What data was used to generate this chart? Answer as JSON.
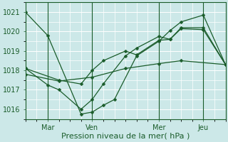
{
  "bg_color": "#cce8e8",
  "plot_bg_color": "#cce8e8",
  "grid_color": "#ffffff",
  "line_color": "#1a5c2a",
  "ylabel": "Pression niveau de la mer( hPa )",
  "ylim": [
    1015.5,
    1021.5
  ],
  "yticks": [
    1016,
    1017,
    1018,
    1019,
    1020,
    1021
  ],
  "xtick_labels": [
    "Mar",
    "Ven",
    "Mer",
    "Jeu"
  ],
  "xtick_positions": [
    12,
    36,
    72,
    96
  ],
  "xlim": [
    0,
    108
  ],
  "series1": {
    "x": [
      0,
      12,
      30,
      36,
      42,
      48,
      60,
      72,
      78,
      84,
      96,
      108
    ],
    "y": [
      1021.0,
      1019.8,
      1015.75,
      1015.85,
      1016.2,
      1016.5,
      1018.75,
      1019.5,
      1020.05,
      1020.5,
      1020.85,
      1018.3
    ]
  },
  "series2": {
    "x": [
      0,
      12,
      18,
      30,
      36,
      42,
      54,
      60,
      72,
      78,
      84,
      96,
      108
    ],
    "y": [
      1018.1,
      1017.25,
      1017.0,
      1016.0,
      1016.5,
      1017.3,
      1018.75,
      1019.15,
      1019.75,
      1019.6,
      1020.15,
      1020.1,
      1018.3
    ]
  },
  "series3": {
    "x": [
      0,
      18,
      30,
      36,
      42,
      54,
      60,
      72,
      78,
      84,
      96,
      108
    ],
    "y": [
      1018.1,
      1017.5,
      1017.3,
      1018.0,
      1018.5,
      1019.0,
      1018.8,
      1019.55,
      1019.6,
      1020.2,
      1020.2,
      1018.3
    ]
  },
  "series4": {
    "x": [
      0,
      18,
      36,
      54,
      72,
      84,
      108
    ],
    "y": [
      1017.8,
      1017.45,
      1017.65,
      1018.1,
      1018.35,
      1018.5,
      1018.3
    ]
  },
  "xlabel_fontsize": 8,
  "tick_fontsize": 7,
  "markersize": 2.5,
  "linewidth": 0.9
}
